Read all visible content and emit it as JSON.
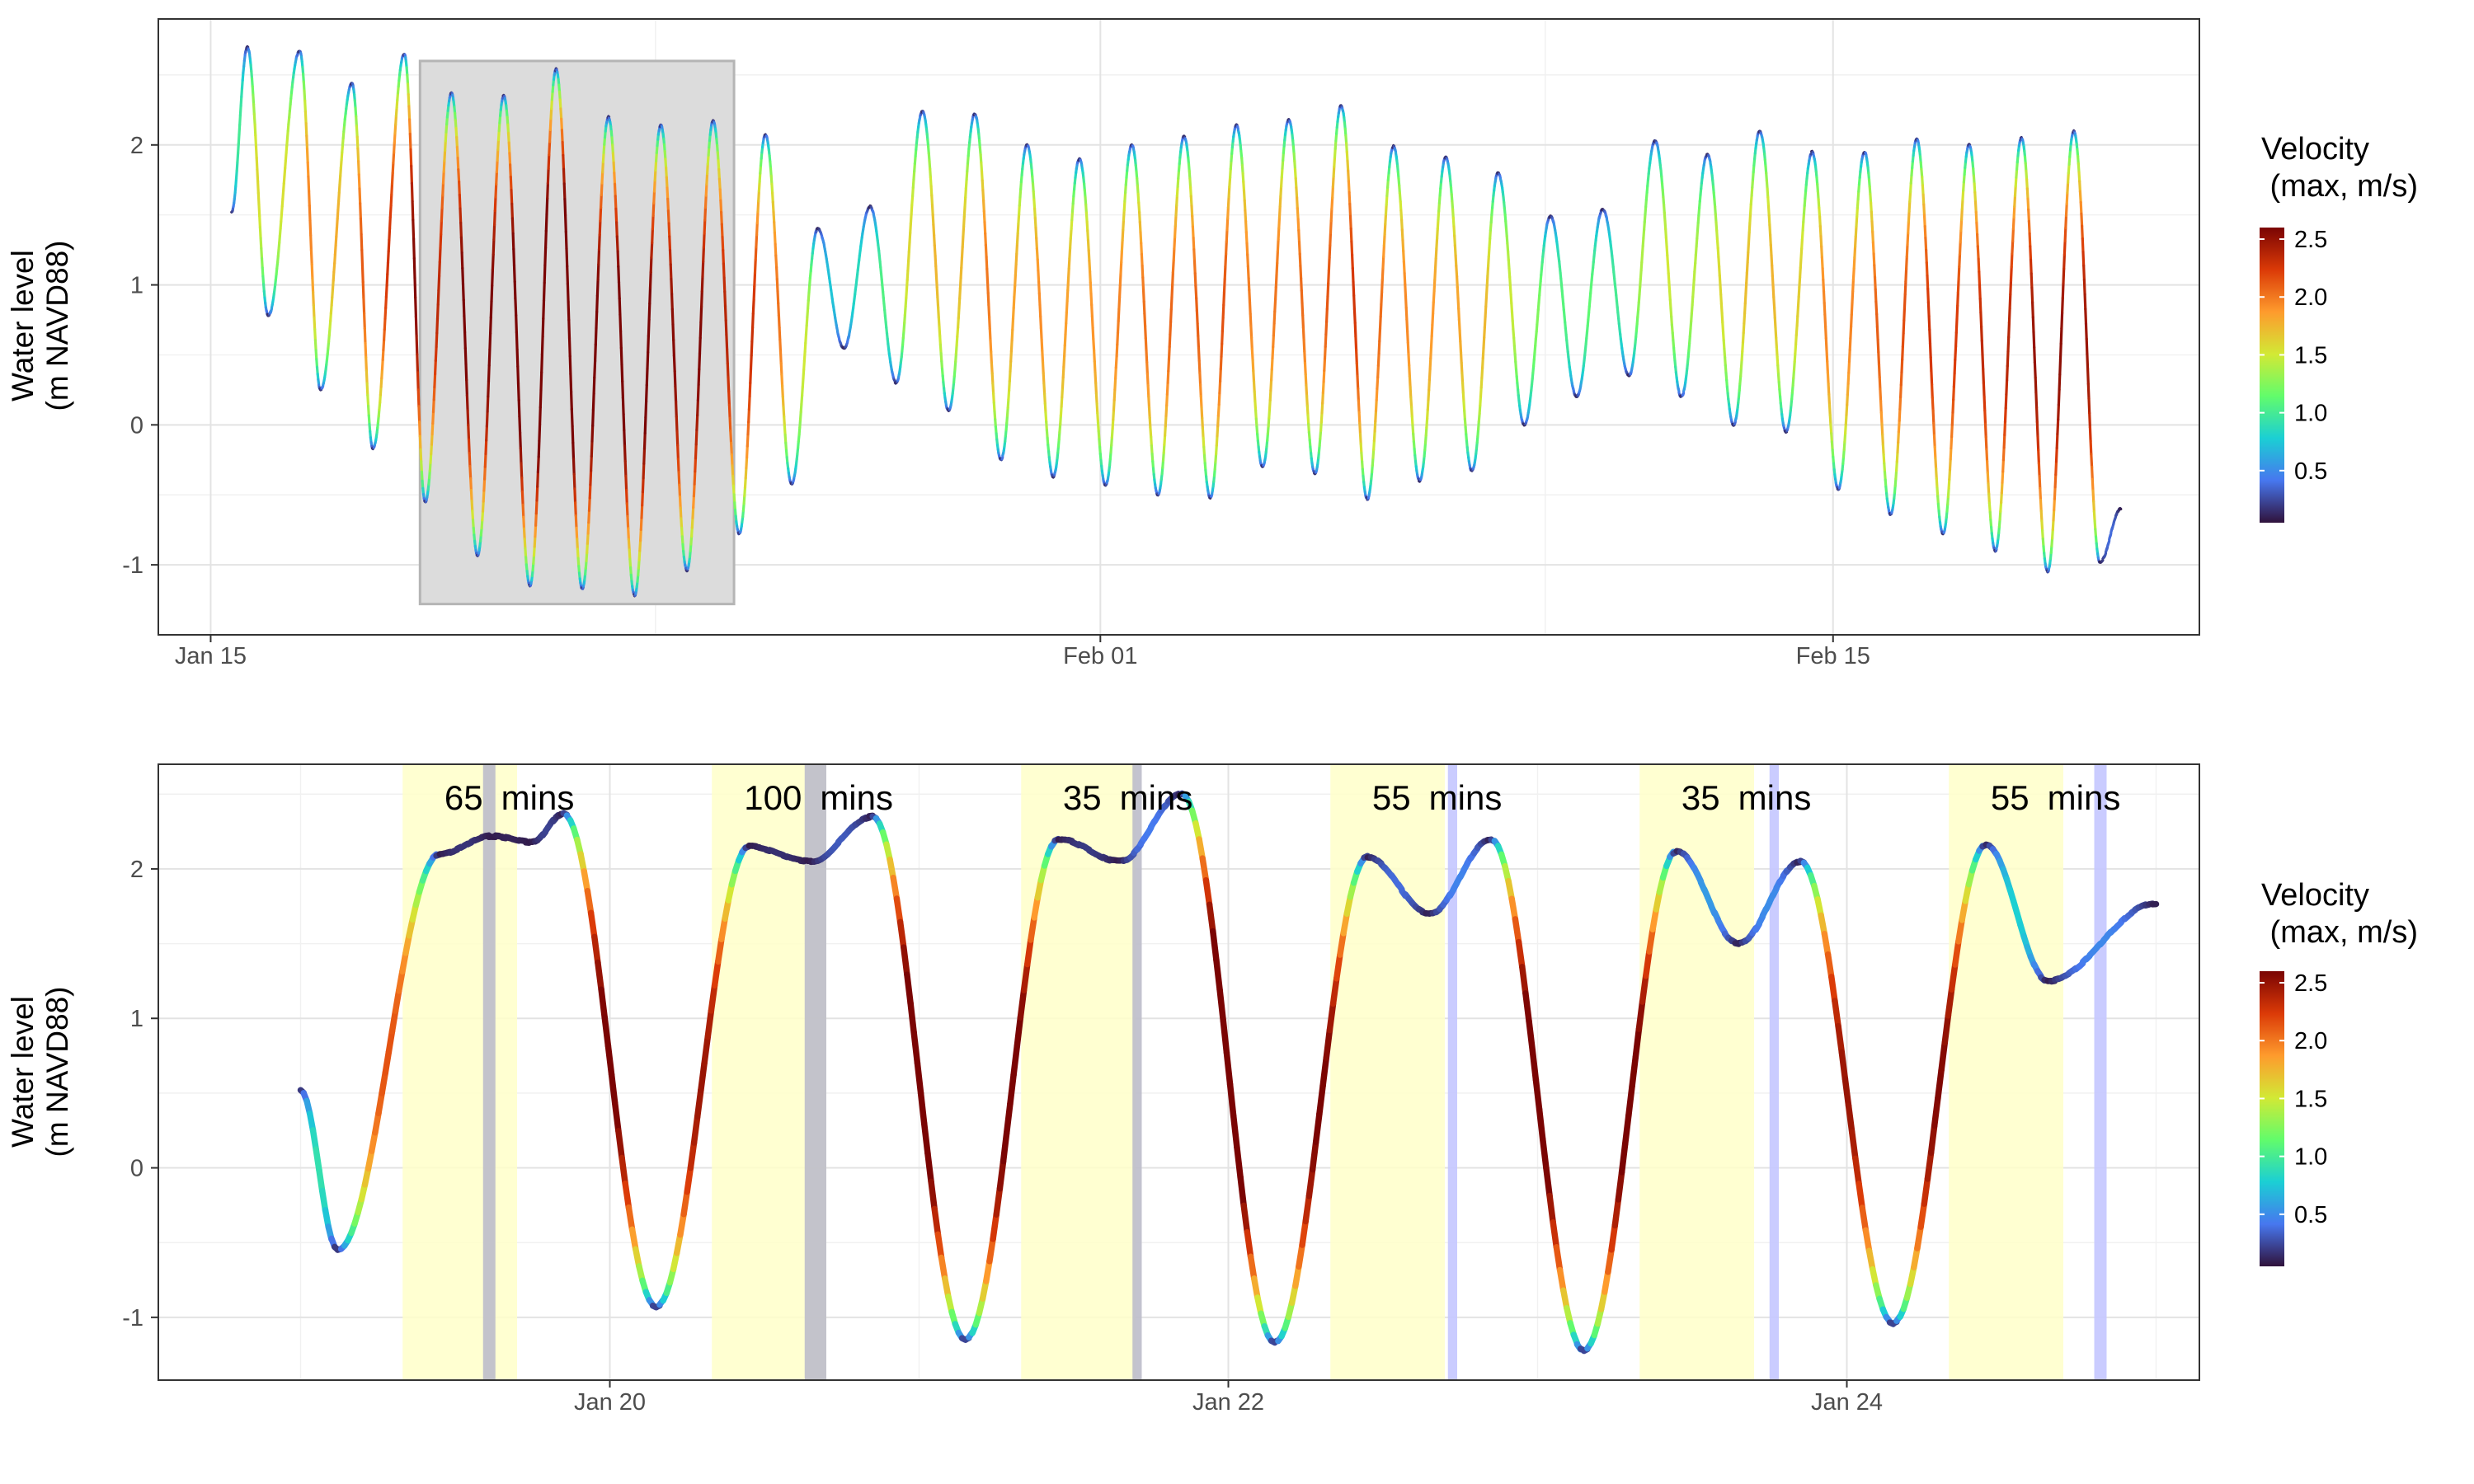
{
  "colors": {
    "panel_border": "#333333",
    "grid_major": "#e3e3e3",
    "grid_minor": "#f1f1f1",
    "zoom_box_fill": "#dcdcdc",
    "zoom_box_stroke": "#b5b5b5",
    "window_fill": "#ffffc9",
    "gray_band": "#bdbdca",
    "blue_band": "#c4c7ff",
    "velocity_scale": [
      "#30123b",
      "#4777ef",
      "#1bcfd4",
      "#62fc6b",
      "#d2e935",
      "#fe9b2d",
      "#db3a07",
      "#7a0403"
    ]
  },
  "chart_data": [
    {
      "type": "line",
      "ylabel": [
        "Water level",
        "(m NAVD88)"
      ],
      "xlabel": "",
      "ylim": [
        -1.5,
        2.9
      ],
      "yticks": [
        -1,
        0,
        1,
        2
      ],
      "ytick_labels": [
        "-1",
        "0",
        "1",
        "2"
      ],
      "x_range_days": [
        "2024-01-14",
        "2024-02-22"
      ],
      "xticks": [
        {
          "date": "2024-01-15",
          "label": "Jan 15"
        },
        {
          "date": "2024-02-01",
          "label": "Feb 01"
        },
        {
          "date": "2024-02-15",
          "label": "Feb 15"
        }
      ],
      "grid": true,
      "color_by": "velocity",
      "zoom_box": {
        "x": [
          "2024-01-19",
          "2024-01-25"
        ],
        "y": [
          -1.28,
          2.6
        ]
      },
      "tides": {
        "high": [
          {
            "date": "2024-01-15.7",
            "level": 2.7
          },
          {
            "date": "2024-01-16.7",
            "level": 2.67
          },
          {
            "date": "2024-01-17.7",
            "level": 2.44
          },
          {
            "date": "2024-01-18.7",
            "level": 2.65
          },
          {
            "date": "2024-01-19.6",
            "level": 2.37
          },
          {
            "date": "2024-01-20.6",
            "level": 2.35
          },
          {
            "date": "2024-01-21.6",
            "level": 2.54
          },
          {
            "date": "2024-01-22.6",
            "level": 2.2
          },
          {
            "date": "2024-01-23.6",
            "level": 2.14
          },
          {
            "date": "2024-01-24.6",
            "level": 2.17
          },
          {
            "date": "2024-01-25.6",
            "level": 2.07
          },
          {
            "date": "2024-01-26.6",
            "level": 1.4
          },
          {
            "date": "2024-01-27.6",
            "level": 1.56
          },
          {
            "date": "2024-01-28.6",
            "level": 2.24
          },
          {
            "date": "2024-01-29.6",
            "level": 2.22
          },
          {
            "date": "2024-01-30.6",
            "level": 2.0
          },
          {
            "date": "2024-01-31.6",
            "level": 1.9
          },
          {
            "date": "2024-02-01.6",
            "level": 2.0
          },
          {
            "date": "2024-02-02.6",
            "level": 2.06
          },
          {
            "date": "2024-02-03.6",
            "level": 2.14
          },
          {
            "date": "2024-02-04.6",
            "level": 2.18
          },
          {
            "date": "2024-02-05.6",
            "level": 2.28
          },
          {
            "date": "2024-02-06.6",
            "level": 1.99
          },
          {
            "date": "2024-02-07.6",
            "level": 1.91
          },
          {
            "date": "2024-02-08.6",
            "level": 1.8
          },
          {
            "date": "2024-02-09.6",
            "level": 1.49
          },
          {
            "date": "2024-02-10.6",
            "level": 1.54
          },
          {
            "date": "2024-02-11.6",
            "level": 2.03
          },
          {
            "date": "2024-02-12.6",
            "level": 1.93
          },
          {
            "date": "2024-02-13.6",
            "level": 2.1
          },
          {
            "date": "2024-02-14.6",
            "level": 1.95
          },
          {
            "date": "2024-02-15.6",
            "level": 1.95
          },
          {
            "date": "2024-02-16.6",
            "level": 2.04
          },
          {
            "date": "2024-02-17.6",
            "level": 2.0
          },
          {
            "date": "2024-02-18.6",
            "level": 2.05
          },
          {
            "date": "2024-02-19.6",
            "level": 2.1
          }
        ],
        "low": [
          {
            "date": "2024-01-16.1",
            "level": 0.78
          },
          {
            "date": "2024-01-17.1",
            "level": 0.25
          },
          {
            "date": "2024-01-18.1",
            "level": -0.17
          },
          {
            "date": "2024-01-19.1",
            "level": -0.55
          },
          {
            "date": "2024-01-20.1",
            "level": -0.93
          },
          {
            "date": "2024-01-21.1",
            "level": -1.15
          },
          {
            "date": "2024-01-22.1",
            "level": -1.17
          },
          {
            "date": "2024-01-23.1",
            "level": -1.22
          },
          {
            "date": "2024-01-24.1",
            "level": -1.04
          },
          {
            "date": "2024-01-25.1",
            "level": -0.78
          },
          {
            "date": "2024-01-26.1",
            "level": -0.42
          },
          {
            "date": "2024-01-27.1",
            "level": 0.55
          },
          {
            "date": "2024-01-28.1",
            "level": 0.3
          },
          {
            "date": "2024-01-29.1",
            "level": 0.1
          },
          {
            "date": "2024-01-30.1",
            "level": -0.25
          },
          {
            "date": "2024-01-31.1",
            "level": -0.37
          },
          {
            "date": "2024-02-01.1",
            "level": -0.43
          },
          {
            "date": "2024-02-02.1",
            "level": -0.5
          },
          {
            "date": "2024-02-03.1",
            "level": -0.52
          },
          {
            "date": "2024-02-04.1",
            "level": -0.3
          },
          {
            "date": "2024-02-05.1",
            "level": -0.35
          },
          {
            "date": "2024-02-06.1",
            "level": -0.53
          },
          {
            "date": "2024-02-07.1",
            "level": -0.4
          },
          {
            "date": "2024-02-08.1",
            "level": -0.33
          },
          {
            "date": "2024-02-09.1",
            "level": 0.0
          },
          {
            "date": "2024-02-10.1",
            "level": 0.2
          },
          {
            "date": "2024-02-11.1",
            "level": 0.35
          },
          {
            "date": "2024-02-12.1",
            "level": 0.2
          },
          {
            "date": "2024-02-13.1",
            "level": 0.0
          },
          {
            "date": "2024-02-14.1",
            "level": -0.05
          },
          {
            "date": "2024-02-15.1",
            "level": -0.46
          },
          {
            "date": "2024-02-16.1",
            "level": -0.64
          },
          {
            "date": "2024-02-17.1",
            "level": -0.78
          },
          {
            "date": "2024-02-18.1",
            "level": -0.9
          },
          {
            "date": "2024-02-19.1",
            "level": -1.05
          },
          {
            "date": "2024-02-20.1",
            "level": -0.98
          }
        ]
      },
      "colorbar": {
        "title": [
          "Velocity",
          " (max, m/s)"
        ],
        "range": [
          0.05,
          2.6
        ],
        "ticks": [
          0.5,
          1.0,
          1.5,
          2.0,
          2.5
        ],
        "tick_labels": [
          "0.5",
          "1.0",
          "1.5",
          "2.0",
          "2.5"
        ]
      }
    },
    {
      "type": "line",
      "ylabel": [
        "Water level",
        "(m NAVD88)"
      ],
      "xlabel": "",
      "ylim": [
        -1.42,
        2.7
      ],
      "yticks": [
        -1,
        0,
        1,
        2
      ],
      "ytick_labels": [
        "-1",
        "0",
        "1",
        "2"
      ],
      "x_range_days": [
        "2024-01-18.54",
        "2024-01-25.14"
      ],
      "xticks": [
        {
          "date": "2024-01-20",
          "label": "Jan 20"
        },
        {
          "date": "2024-01-22",
          "label": "Jan 22"
        },
        {
          "date": "2024-01-24",
          "label": "Jan 24"
        }
      ],
      "grid": true,
      "color_by": "velocity",
      "series_points": [
        {
          "date": "2024-01-19.00",
          "level": 0.52
        },
        {
          "date": "2024-01-19.12",
          "level": -0.55
        },
        {
          "date": "2024-01-19.45",
          "level": 2.1
        },
        {
          "date": "2024-01-19.62",
          "level": 2.22
        },
        {
          "date": "2024-01-19.75",
          "level": 2.18
        },
        {
          "date": "2024-01-19.85",
          "level": 2.37
        },
        {
          "date": "2024-01-20.15",
          "level": -0.93
        },
        {
          "date": "2024-01-20.45",
          "level": 2.15
        },
        {
          "date": "2024-01-20.65",
          "level": 2.05
        },
        {
          "date": "2024-01-20.85",
          "level": 2.35
        },
        {
          "date": "2024-01-21.15",
          "level": -1.15
        },
        {
          "date": "2024-01-21.45",
          "level": 2.2
        },
        {
          "date": "2024-01-21.65",
          "level": 2.05
        },
        {
          "date": "2024-01-21.85",
          "level": 2.5
        },
        {
          "date": "2024-01-22.15",
          "level": -1.17
        },
        {
          "date": "2024-01-22.45",
          "level": 2.08
        },
        {
          "date": "2024-01-22.65",
          "level": 1.7
        },
        {
          "date": "2024-01-22.85",
          "level": 2.2
        },
        {
          "date": "2024-01-23.15",
          "level": -1.22
        },
        {
          "date": "2024-01-23.45",
          "level": 2.12
        },
        {
          "date": "2024-01-23.65",
          "level": 1.5
        },
        {
          "date": "2024-01-23.85",
          "level": 2.05
        },
        {
          "date": "2024-01-24.15",
          "level": -1.04
        },
        {
          "date": "2024-01-24.45",
          "level": 2.16
        },
        {
          "date": "2024-01-24.65",
          "level": 1.25
        },
        {
          "date": "2024-01-25.00",
          "level": 1.77
        }
      ],
      "windows": [
        {
          "start": "2024-01-19.33",
          "end": "2024-01-19.70",
          "label_value": "65",
          "label_unit": "mins"
        },
        {
          "start": "2024-01-20.33",
          "end": "2024-01-20.70",
          "label_value": "100",
          "label_unit": "mins"
        },
        {
          "start": "2024-01-21.33",
          "end": "2024-01-21.70",
          "label_value": "35",
          "label_unit": "mins"
        },
        {
          "start": "2024-01-22.33",
          "end": "2024-01-22.70",
          "label_value": "55",
          "label_unit": "mins"
        },
        {
          "start": "2024-01-23.33",
          "end": "2024-01-23.70",
          "label_value": "35",
          "label_unit": "mins"
        },
        {
          "start": "2024-01-24.33",
          "end": "2024-01-24.70",
          "label_value": "55",
          "label_unit": "mins"
        }
      ],
      "bands": [
        {
          "start": "2024-01-19.59",
          "end": "2024-01-19.63",
          "color": "gray"
        },
        {
          "start": "2024-01-20.63",
          "end": "2024-01-20.70",
          "color": "gray"
        },
        {
          "start": "2024-01-21.69",
          "end": "2024-01-21.72",
          "color": "gray"
        },
        {
          "start": "2024-01-22.71",
          "end": "2024-01-22.74",
          "color": "blue"
        },
        {
          "start": "2024-01-23.75",
          "end": "2024-01-23.78",
          "color": "blue"
        },
        {
          "start": "2024-01-24.80",
          "end": "2024-01-24.84",
          "color": "blue"
        }
      ],
      "colorbar": {
        "title": [
          "Velocity",
          " (max, m/s)"
        ],
        "range": [
          0.05,
          2.6
        ],
        "ticks": [
          0.5,
          1.0,
          1.5,
          2.0,
          2.5
        ],
        "tick_labels": [
          "0.5",
          "1.0",
          "1.5",
          "2.0",
          "2.5"
        ]
      }
    }
  ]
}
